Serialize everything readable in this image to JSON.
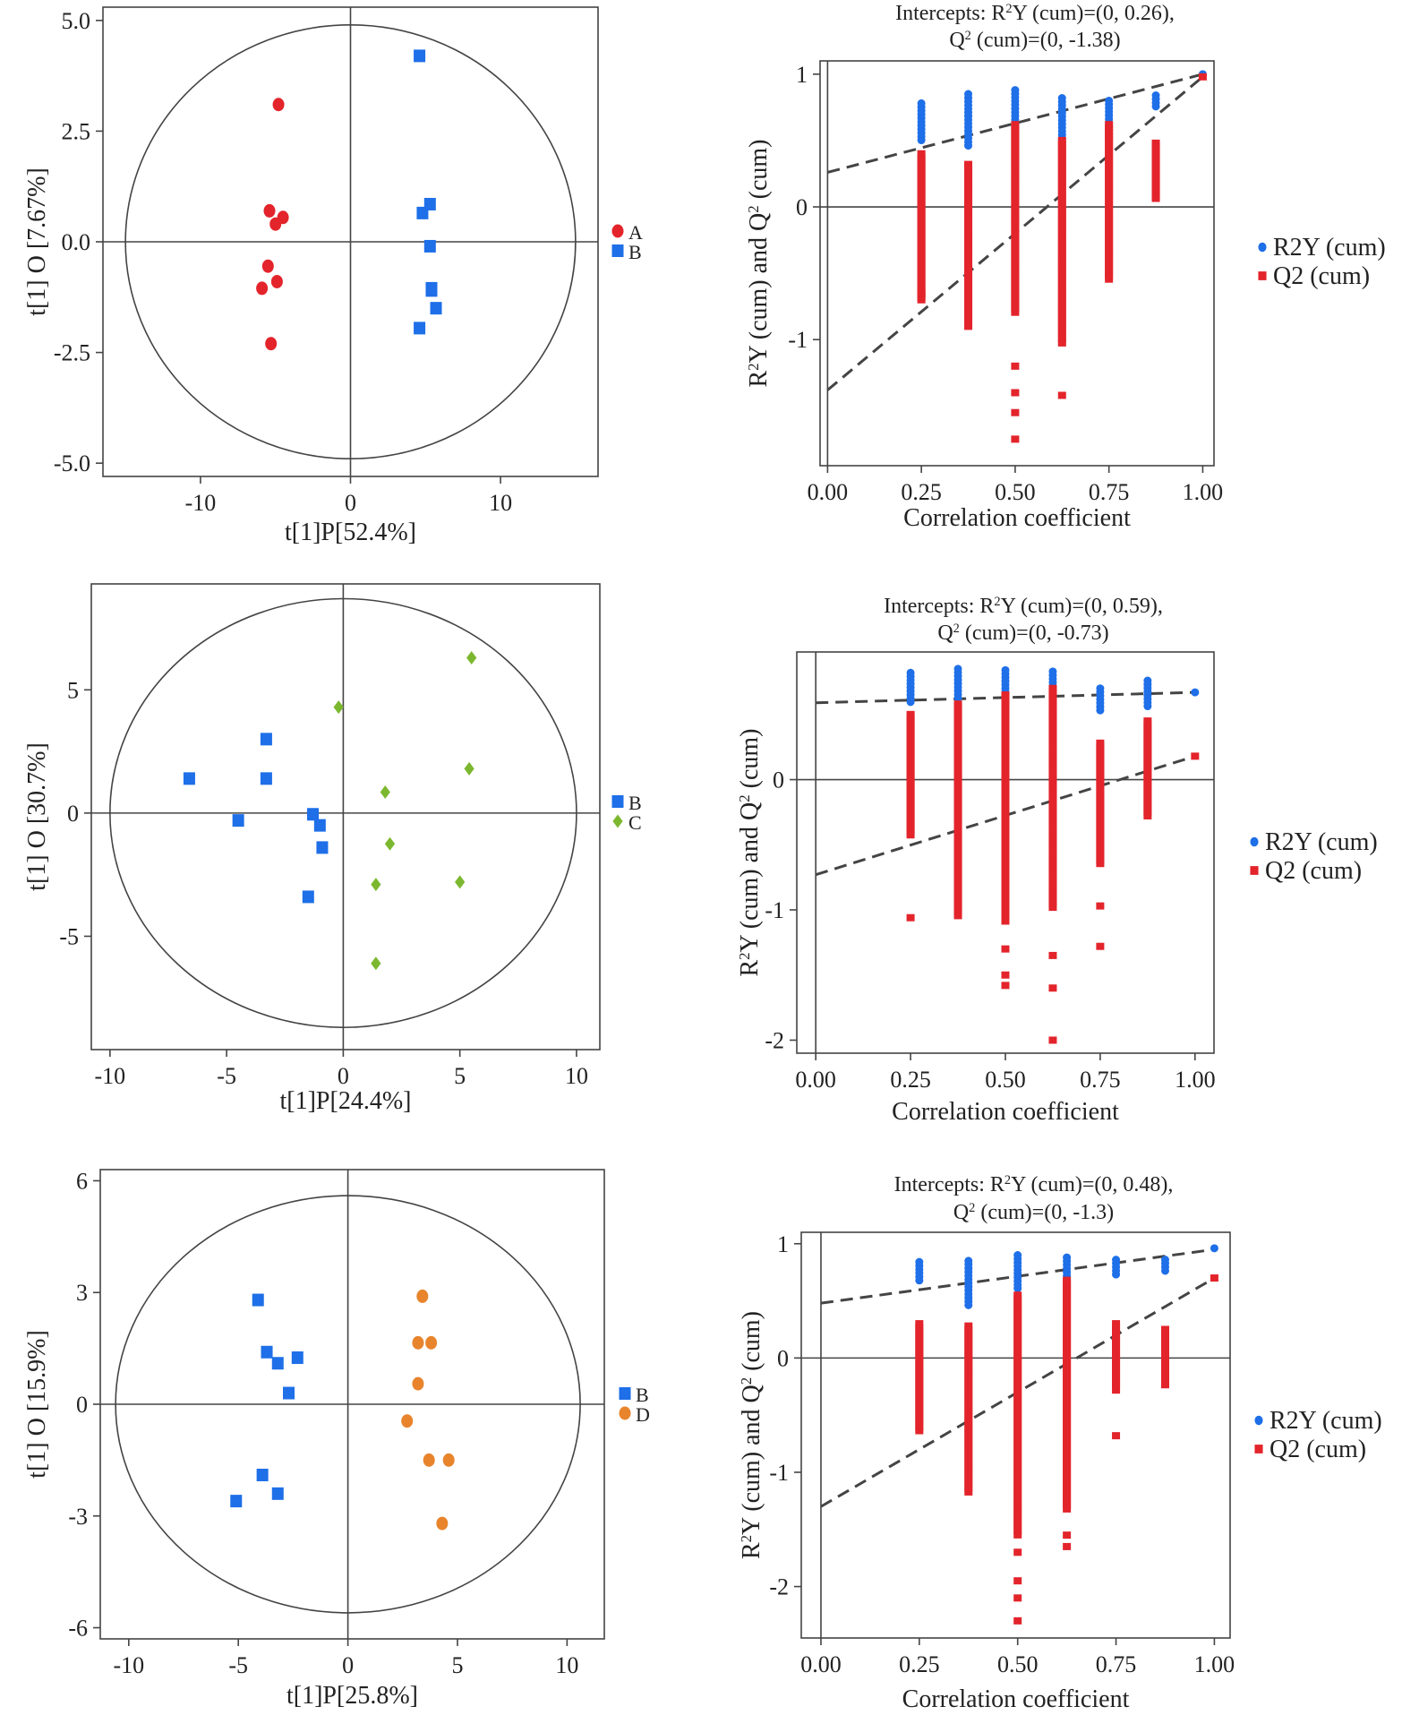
{
  "chart_data": [
    {
      "type": "scatter",
      "xlabel": "t[1]P[52.4%]",
      "ylabel": "t[1] O [7.67%]",
      "xlim": [
        -16.5,
        16.5
      ],
      "ylim": [
        -5.3,
        5.3
      ],
      "xticks": [
        -10,
        0,
        10
      ],
      "xtick_labels": [
        "-10",
        "0",
        "10"
      ],
      "yticks": [
        -5,
        -2.5,
        0,
        2.5,
        5
      ],
      "ytick_labels": [
        "-5.0",
        "-2.5",
        "0.0",
        "2.5",
        "5.0"
      ],
      "ellipse": {
        "rx": 15,
        "ry": 4.9
      },
      "legend": "right",
      "series": [
        {
          "name": "A",
          "marker": "circle",
          "color": "#e3242b",
          "points": [
            [
              -4.8,
              3.1
            ],
            [
              -5.4,
              0.7
            ],
            [
              -4.5,
              0.55
            ],
            [
              -5.0,
              0.4
            ],
            [
              -5.5,
              -0.55
            ],
            [
              -4.9,
              -0.9
            ],
            [
              -5.9,
              -1.05
            ],
            [
              -5.3,
              -2.3
            ]
          ]
        },
        {
          "name": "B",
          "marker": "square",
          "color": "#1e6fe8",
          "points": [
            [
              4.6,
              4.2
            ],
            [
              5.3,
              0.85
            ],
            [
              4.8,
              0.65
            ],
            [
              5.3,
              -0.1
            ],
            [
              5.4,
              -1.05
            ],
            [
              5.4,
              -1.1
            ],
            [
              5.7,
              -1.5
            ],
            [
              4.6,
              -1.95
            ]
          ]
        }
      ]
    },
    {
      "type": "scatter",
      "title": "Intercepts: R²Y (cum)=(0, 0.26), Q² (cum)=(0, -1.38)",
      "title_line1": "Intercepts: R²Y (cum)=(0, 0.26),",
      "title_line2": "Q² (cum)=(0, -1.38)",
      "xlabel": "Correlation coefficient",
      "ylabel": "R²Y (cum) and Q² (cum)",
      "xlim": [
        -0.02,
        1.03
      ],
      "ylim": [
        -1.95,
        1.1
      ],
      "xticks": [
        0,
        0.25,
        0.5,
        0.75,
        1
      ],
      "xtick_labels": [
        "0.00",
        "0.25",
        "0.50",
        "0.75",
        "1.00"
      ],
      "yticks": [
        1,
        0,
        -1
      ],
      "ytick_labels": [
        "1",
        "0",
        "-1"
      ],
      "legend": "right",
      "regression_lines": [
        {
          "name": "R2Y (cum)",
          "x": [
            0,
            1
          ],
          "y": [
            0.26,
            1.0
          ]
        },
        {
          "name": "Q2 (cum)",
          "x": [
            0,
            1
          ],
          "y": [
            -1.38,
            0.98
          ]
        }
      ],
      "series": [
        {
          "name": "R2Y (cum)",
          "marker": "circle",
          "color": "#1e6fe8",
          "columns": [
            {
              "x": 0.25,
              "min": 0.48,
              "max": 0.78
            },
            {
              "x": 0.375,
              "min": 0.46,
              "max": 0.85
            },
            {
              "x": 0.5,
              "min": 0.4,
              "max": 0.88
            },
            {
              "x": 0.625,
              "min": 0.45,
              "max": 0.82
            },
            {
              "x": 0.75,
              "min": 0.52,
              "max": 0.8
            },
            {
              "x": 0.875,
              "min": 0.75,
              "max": 0.84
            },
            {
              "x": 1,
              "min": 1,
              "max": 1
            }
          ]
        },
        {
          "name": "Q2 (cum)",
          "marker": "square",
          "color": "#e3242b",
          "columns": [
            {
              "x": 0.25,
              "min": -0.7,
              "max": 0.4,
              "extra": [
                -0.7,
                -0.65
              ]
            },
            {
              "x": 0.375,
              "min": -0.9,
              "max": 0.32
            },
            {
              "x": 0.5,
              "min": -0.82,
              "max": 0.62,
              "extra": [
                -1.2,
                -1.4,
                -1.55,
                -1.75
              ]
            },
            {
              "x": 0.625,
              "min": -1.05,
              "max": 0.5,
              "extra": [
                -1.42
              ]
            },
            {
              "x": 0.75,
              "min": -0.55,
              "max": 0.62
            },
            {
              "x": 0.875,
              "min": 0.05,
              "max": 0.48
            },
            {
              "x": 1,
              "min": 0.98,
              "max": 0.98
            }
          ]
        }
      ]
    },
    {
      "type": "scatter",
      "xlabel": "t[1]P[24.4%]",
      "ylabel": "t[1] O [30.7%]",
      "xlim": [
        -10.8,
        11.0
      ],
      "ylim": [
        -9.6,
        9.3
      ],
      "xticks": [
        -10,
        -5,
        0,
        5,
        10
      ],
      "xtick_labels": [
        "-10",
        "-5",
        "0",
        "5",
        "10"
      ],
      "yticks": [
        -5,
        0,
        5
      ],
      "ytick_labels": [
        "-5",
        "0",
        "5"
      ],
      "ellipse": {
        "rx": 10,
        "ry": 8.7
      },
      "legend": "right",
      "series": [
        {
          "name": "B",
          "marker": "square",
          "color": "#1e6fe8",
          "points": [
            [
              -6.6,
              1.4
            ],
            [
              -3.3,
              3.0
            ],
            [
              -3.3,
              1.4
            ],
            [
              -4.5,
              -0.3
            ],
            [
              -1.3,
              -0.05
            ],
            [
              -1.0,
              -0.5
            ],
            [
              -0.9,
              -1.4
            ],
            [
              -1.5,
              -3.4
            ]
          ]
        },
        {
          "name": "C",
          "marker": "diamond",
          "color": "#7cb82f",
          "points": [
            [
              -0.2,
              4.3
            ],
            [
              5.5,
              6.3
            ],
            [
              5.4,
              1.8
            ],
            [
              1.8,
              0.85
            ],
            [
              2.0,
              -1.25
            ],
            [
              1.4,
              -2.9
            ],
            [
              5.0,
              -2.8
            ],
            [
              1.4,
              -6.1
            ]
          ]
        }
      ]
    },
    {
      "type": "scatter",
      "title": "Intercepts: R²Y (cum)=(0, 0.59), Q² (cum)=(0, -0.73)",
      "title_line1": "Intercepts: R²Y (cum)=(0, 0.59),",
      "title_line2": "Q² (cum)=(0, -0.73)",
      "xlabel": "Correlation coefficient",
      "ylabel": "R²Y (cum) and Q² (cum)",
      "xlim": [
        -0.05,
        1.05
      ],
      "ylim": [
        -2.1,
        0.98
      ],
      "xticks": [
        0,
        0.25,
        0.5,
        0.75,
        1
      ],
      "xtick_labels": [
        "0.00",
        "0.25",
        "0.50",
        "0.75",
        "1.00"
      ],
      "yticks": [
        0,
        -1,
        -2
      ],
      "ytick_labels": [
        "0",
        "-1",
        "-2"
      ],
      "legend": "right",
      "regression_lines": [
        {
          "name": "R2Y (cum)",
          "x": [
            0,
            1
          ],
          "y": [
            0.59,
            0.67
          ]
        },
        {
          "name": "Q2 (cum)",
          "x": [
            0,
            1
          ],
          "y": [
            -0.73,
            0.18
          ]
        }
      ],
      "series": [
        {
          "name": "R2Y (cum)",
          "marker": "circle",
          "color": "#1e6fe8",
          "columns": [
            {
              "x": 0.25,
              "min": 0.58,
              "max": 0.82
            },
            {
              "x": 0.375,
              "min": 0.6,
              "max": 0.85
            },
            {
              "x": 0.5,
              "min": 0.45,
              "max": 0.84
            },
            {
              "x": 0.625,
              "min": 0.42,
              "max": 0.83
            },
            {
              "x": 0.75,
              "min": 0.52,
              "max": 0.7
            },
            {
              "x": 0.875,
              "min": 0.55,
              "max": 0.76
            },
            {
              "x": 1,
              "min": 0.67,
              "max": 0.67
            }
          ]
        },
        {
          "name": "Q2 (cum)",
          "marker": "square",
          "color": "#e3242b",
          "columns": [
            {
              "x": 0.25,
              "min": -0.45,
              "max": 0.5,
              "extra": [
                -1.06
              ]
            },
            {
              "x": 0.375,
              "min": -1.05,
              "max": 0.58
            },
            {
              "x": 0.5,
              "min": -1.1,
              "max": 0.65,
              "extra": [
                -1.3,
                -1.5,
                -1.58
              ]
            },
            {
              "x": 0.625,
              "min": -1.0,
              "max": 0.7,
              "extra": [
                -1.35,
                -1.6,
                -2.0
              ]
            },
            {
              "x": 0.75,
              "min": -0.65,
              "max": 0.28,
              "extra": [
                -0.97,
                -1.28
              ]
            },
            {
              "x": 0.875,
              "min": -0.28,
              "max": 0.45
            },
            {
              "x": 1,
              "min": 0.18,
              "max": 0.18
            }
          ]
        }
      ]
    },
    {
      "type": "scatter",
      "xlabel": "t[1]P[25.8%]",
      "ylabel": "t[1] O [15.9%]",
      "xlim": [
        -11.3,
        11.7
      ],
      "ylim": [
        -6.3,
        6.3
      ],
      "xticks": [
        -10,
        -5,
        0,
        5,
        10
      ],
      "xtick_labels": [
        "-10",
        "-5",
        "0",
        "5",
        "10"
      ],
      "yticks": [
        6,
        3,
        0,
        -3,
        -6
      ],
      "ytick_labels": [
        "6",
        "3",
        "0",
        "-3",
        "-6"
      ],
      "ellipse": {
        "rx": 10.6,
        "ry": 5.6
      },
      "legend": "right",
      "series": [
        {
          "name": "B",
          "marker": "square",
          "color": "#1e6fe8",
          "points": [
            [
              -4.1,
              2.8
            ],
            [
              -3.7,
              1.4
            ],
            [
              -3.2,
              1.1
            ],
            [
              -2.3,
              1.25
            ],
            [
              -2.7,
              0.3
            ],
            [
              -3.9,
              -1.9
            ],
            [
              -3.2,
              -2.4
            ],
            [
              -5.1,
              -2.6
            ]
          ]
        },
        {
          "name": "D",
          "marker": "circle",
          "color": "#e8842c",
          "points": [
            [
              3.4,
              2.9
            ],
            [
              3.2,
              1.65
            ],
            [
              3.8,
              1.65
            ],
            [
              3.2,
              0.55
            ],
            [
              2.7,
              -0.45
            ],
            [
              3.7,
              -1.5
            ],
            [
              4.6,
              -1.5
            ],
            [
              4.3,
              -3.2
            ]
          ]
        }
      ]
    },
    {
      "type": "scatter",
      "title": "Intercepts: R²Y (cum)=(0, 0.48), Q² (cum)=(0, -1.3)",
      "title_line1": "Intercepts: R²Y (cum)=(0, 0.48),",
      "title_line2": "Q² (cum)=(0, -1.3)",
      "xlabel": "Correlation coefficient",
      "ylabel": "R²Y (cum) and Q² (cum)",
      "xlim": [
        -0.05,
        1.04
      ],
      "ylim": [
        -2.45,
        1.1
      ],
      "xticks": [
        0,
        0.25,
        0.5,
        0.75,
        1
      ],
      "xtick_labels": [
        "0.00",
        "0.25",
        "0.50",
        "0.75",
        "1.00"
      ],
      "yticks": [
        1,
        0,
        -1,
        -2
      ],
      "ytick_labels": [
        "1",
        "0",
        "-1",
        "-2"
      ],
      "legend": "right",
      "regression_lines": [
        {
          "name": "R2Y (cum)",
          "x": [
            0,
            1
          ],
          "y": [
            0.48,
            0.95
          ]
        },
        {
          "name": "Q2 (cum)",
          "x": [
            0,
            1
          ],
          "y": [
            -1.3,
            0.7
          ]
        }
      ],
      "series": [
        {
          "name": "R2Y (cum)",
          "marker": "circle",
          "color": "#1e6fe8",
          "columns": [
            {
              "x": 0.25,
              "min": 0.66,
              "max": 0.84
            },
            {
              "x": 0.375,
              "min": 0.45,
              "max": 0.85
            },
            {
              "x": 0.5,
              "min": 0.58,
              "max": 0.9
            },
            {
              "x": 0.625,
              "min": 0.62,
              "max": 0.88
            },
            {
              "x": 0.75,
              "min": 0.7,
              "max": 0.86
            },
            {
              "x": 0.875,
              "min": 0.76,
              "max": 0.86
            },
            {
              "x": 1,
              "min": 0.96,
              "max": 0.96
            }
          ]
        },
        {
          "name": "Q2 (cum)",
          "marker": "square",
          "color": "#e3242b",
          "columns": [
            {
              "x": 0.25,
              "min": -0.65,
              "max": 0.3
            },
            {
              "x": 0.375,
              "min": -1.2,
              "max": 0.28
            },
            {
              "x": 0.5,
              "min": -1.55,
              "max": 0.55,
              "extra": [
                -1.7,
                -1.95,
                -2.1,
                -2.3
              ]
            },
            {
              "x": 0.625,
              "min": -1.35,
              "max": 0.68,
              "extra": [
                -1.55,
                -1.65
              ]
            },
            {
              "x": 0.75,
              "min": -0.3,
              "max": 0.3,
              "extra": [
                -0.68
              ]
            },
            {
              "x": 0.875,
              "min": -0.25,
              "max": 0.25
            },
            {
              "x": 1,
              "min": 0.7,
              "max": 0.7
            }
          ]
        }
      ]
    }
  ],
  "colors": {
    "axis": "#444444",
    "dash": "#444444",
    "A": "#e3242b",
    "B": "#1e6fe8",
    "C": "#7cb82f",
    "D": "#e8842c"
  }
}
